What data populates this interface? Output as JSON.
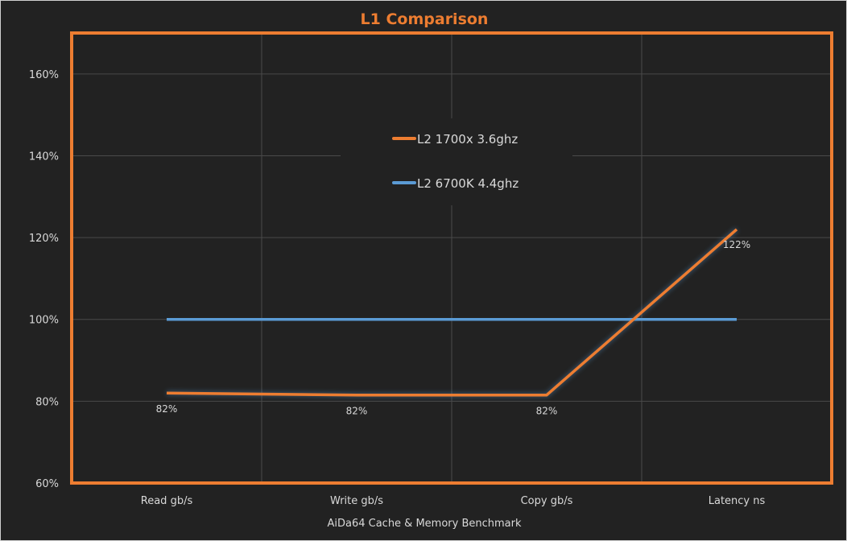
{
  "chart_data": {
    "type": "line",
    "title": "L1 Comparison",
    "xlabel": "AiDa64 Cache & Memory Benchmark",
    "ylabel": "",
    "categories": [
      "Read gb/s",
      "Write gb/s",
      "Copy gb/s",
      "Latency ns"
    ],
    "ylim": [
      60,
      170
    ],
    "yticks": [
      60,
      80,
      100,
      120,
      140,
      160
    ],
    "ytick_labels": [
      "60%",
      "80%",
      "100%",
      "120%",
      "140%",
      "160%"
    ],
    "grid": true,
    "legend_position": "top-center",
    "series": [
      {
        "name": "L2 1700x 3.6ghz",
        "color": "#ed7d31",
        "values": [
          82,
          81.5,
          81.5,
          122
        ],
        "data_labels": [
          "82%",
          "82%",
          "82%",
          "122%"
        ]
      },
      {
        "name": "L2  6700K 4.4ghz",
        "color": "#5b9bd5",
        "values": [
          100,
          100,
          100,
          100
        ],
        "data_labels": []
      }
    ]
  }
}
